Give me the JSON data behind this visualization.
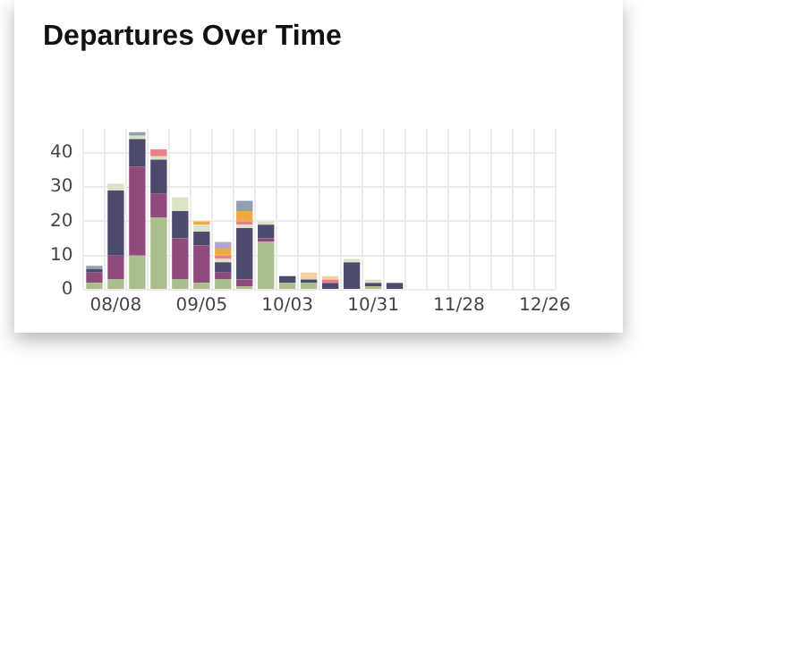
{
  "chart_data": {
    "type": "bar",
    "title": "Departures Over Time",
    "stacked": true,
    "grid": true,
    "legend": false,
    "categories": [
      null,
      "08/08",
      null,
      null,
      null,
      "09/05",
      null,
      null,
      null,
      "10/03",
      null,
      null,
      null,
      "10/31",
      null,
      null,
      null,
      "11/28",
      null,
      null,
      null,
      "12/26"
    ],
    "ylim": [
      0,
      47
    ],
    "yticks": [
      0,
      10,
      20,
      30,
      40
    ],
    "series": [
      {
        "color": "#a9bf8e",
        "values": [
          2,
          3,
          10,
          21,
          3,
          2,
          3,
          1,
          14,
          2,
          2,
          null,
          null,
          1,
          null,
          null,
          null,
          null,
          null,
          null,
          null,
          null
        ]
      },
      {
        "color": "#8f4b7b",
        "values": [
          3,
          7,
          26,
          7,
          12,
          11,
          2,
          2,
          1,
          null,
          null,
          null,
          null,
          null,
          null,
          null,
          null,
          null,
          null,
          null,
          null,
          null
        ]
      },
      {
        "color": "#4c4b6d",
        "values": [
          1,
          19,
          8,
          10,
          8,
          4,
          3,
          15,
          4,
          2,
          1,
          2,
          8,
          1,
          2,
          null,
          null,
          null,
          null,
          null,
          null,
          null
        ]
      },
      {
        "color": "#dae3c8",
        "values": [
          null,
          2,
          1,
          1,
          4,
          2,
          1,
          1,
          1,
          null,
          null,
          null,
          1,
          1,
          null,
          null,
          null,
          null,
          null,
          null,
          null,
          null
        ]
      },
      {
        "color": "#ea7f8b",
        "values": [
          null,
          null,
          null,
          2,
          null,
          null,
          1,
          1,
          null,
          null,
          null,
          1,
          null,
          null,
          null,
          null,
          null,
          null,
          null,
          null,
          null,
          null
        ]
      },
      {
        "color": "#efa845",
        "values": [
          null,
          null,
          null,
          null,
          null,
          1,
          2,
          3,
          null,
          null,
          null,
          null,
          null,
          null,
          null,
          null,
          null,
          null,
          null,
          null,
          null,
          null
        ]
      },
      {
        "color": "#f5d19f",
        "values": [
          null,
          null,
          null,
          null,
          null,
          null,
          null,
          null,
          null,
          null,
          2,
          1,
          null,
          null,
          null,
          null,
          null,
          null,
          null,
          null,
          null,
          null
        ]
      },
      {
        "color": "#8fa0b2",
        "values": [
          1,
          null,
          1,
          null,
          null,
          null,
          null,
          3,
          null,
          null,
          null,
          null,
          null,
          null,
          null,
          null,
          null,
          null,
          null,
          null,
          null,
          null
        ]
      },
      {
        "color": "#b3a7c9",
        "values": [
          null,
          null,
          null,
          null,
          null,
          null,
          2,
          null,
          null,
          null,
          null,
          null,
          null,
          null,
          null,
          null,
          null,
          null,
          null,
          null,
          null,
          null
        ]
      }
    ]
  }
}
